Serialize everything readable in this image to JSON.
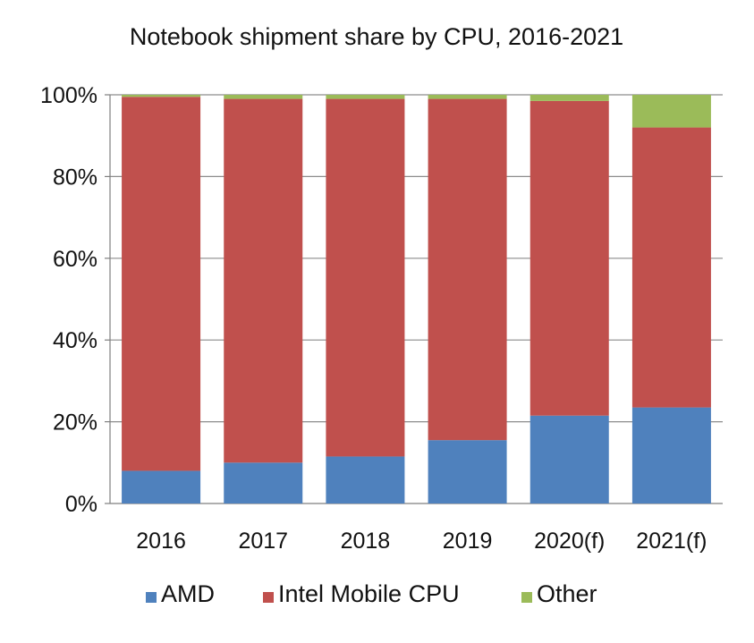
{
  "chart_data": {
    "type": "bar",
    "stacked": true,
    "title": "Notebook shipment share by CPU,  2016-2021",
    "xlabel": "",
    "ylabel": "",
    "categories": [
      "2016",
      "2017",
      "2018",
      "2019",
      "2020(f)",
      "2021(f)"
    ],
    "series": [
      {
        "name": "AMD",
        "color": "#4f81bd",
        "values": [
          8,
          10,
          11.5,
          15.5,
          21.5,
          23.5
        ]
      },
      {
        "name": "Intel Mobile CPU",
        "color": "#c0504d",
        "values": [
          91.5,
          89,
          87.5,
          83.5,
          77,
          68.5
        ]
      },
      {
        "name": "Other",
        "color": "#9bbb59",
        "values": [
          0.5,
          1,
          1,
          1,
          1.5,
          8
        ]
      }
    ],
    "ylim": [
      0,
      100
    ],
    "yticks": [
      "0%",
      "20%",
      "40%",
      "60%",
      "80%",
      "100%"
    ],
    "grid": true,
    "legend": "bottom"
  }
}
